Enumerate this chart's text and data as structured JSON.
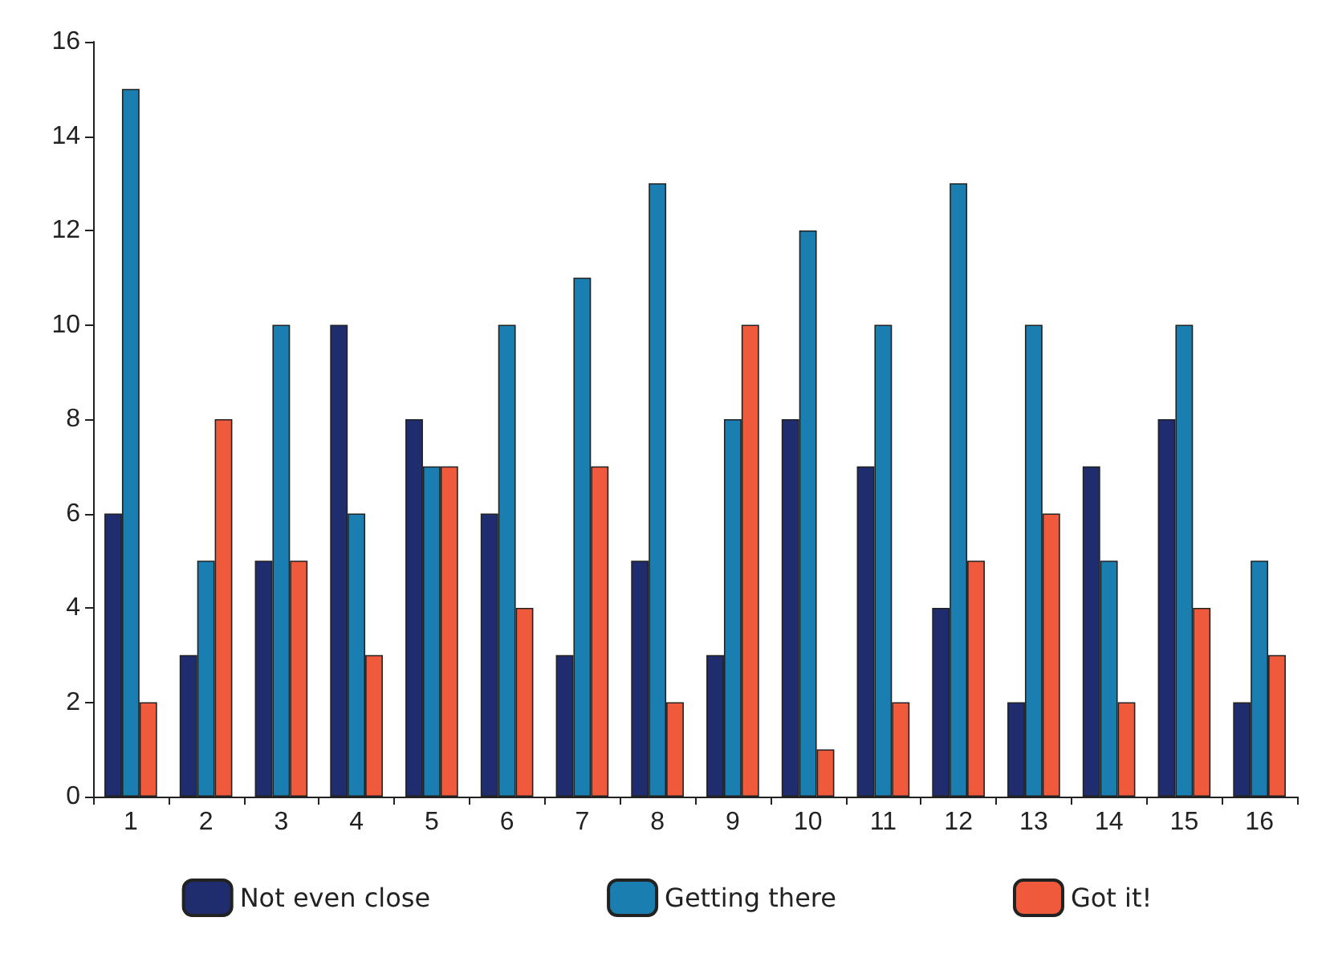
{
  "chart_data": {
    "type": "bar",
    "categories": [
      "1",
      "2",
      "3",
      "4",
      "5",
      "6",
      "7",
      "8",
      "9",
      "10",
      "11",
      "12",
      "13",
      "14",
      "15",
      "16"
    ],
    "series": [
      {
        "name": "Not even close",
        "color": "#1f2d6e",
        "values": [
          6,
          3,
          5,
          10,
          8,
          6,
          3,
          5,
          3,
          8,
          7,
          4,
          2,
          7,
          8,
          2
        ]
      },
      {
        "name": "Getting there",
        "color": "#1a7fb0",
        "values": [
          15,
          5,
          10,
          6,
          7,
          10,
          11,
          13,
          8,
          12,
          10,
          13,
          10,
          5,
          10,
          5
        ]
      },
      {
        "name": "Got it!",
        "color": "#f05a3c",
        "values": [
          2,
          8,
          5,
          3,
          7,
          4,
          7,
          2,
          10,
          1,
          2,
          5,
          6,
          2,
          4,
          3
        ]
      }
    ],
    "ylim": [
      0,
      16
    ],
    "yticks": [
      0,
      2,
      4,
      6,
      8,
      10,
      12,
      14,
      16
    ],
    "grid": false,
    "legend": "bottom"
  }
}
